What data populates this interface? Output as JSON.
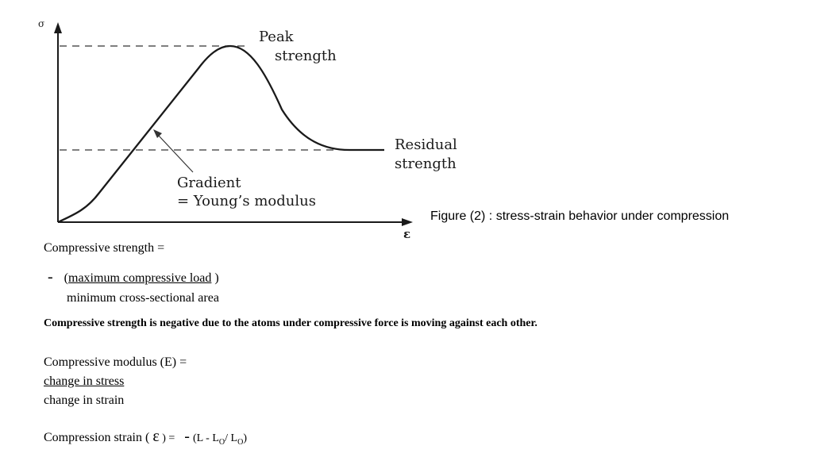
{
  "figure": {
    "y_axis_symbol": "σ",
    "x_axis_symbol": "ε",
    "peak_label_line1": "Peak",
    "peak_label_line2": "strength",
    "residual_label_line1": "Residual",
    "residual_label_line2": "strength",
    "gradient_label_line1": "Gradient",
    "gradient_label_line2": "= Young’s modulus",
    "caption": "Figure (2) : stress-strain behavior under compression"
  },
  "strength": {
    "heading": "Compressive strength  =",
    "minus": "-",
    "paren_open": "(",
    "numerator": "maximum compressive load",
    "paren_close": " )",
    "denominator": "minimum cross-sectional area",
    "note": "Compressive strength is negative due to the atoms under compressive force is moving against each other."
  },
  "modulus": {
    "heading": "Compressive modulus (E) =",
    "numerator": "change in stress",
    "denominator": "change in strain"
  },
  "strain": {
    "label": "Compression strain (",
    "symbol": "ε",
    "equals": " ) =",
    "minus": "-",
    "formula_open": "(L - L",
    "sub1": "O",
    "slash": "/ L",
    "sub2": "O",
    "close": ")"
  }
}
